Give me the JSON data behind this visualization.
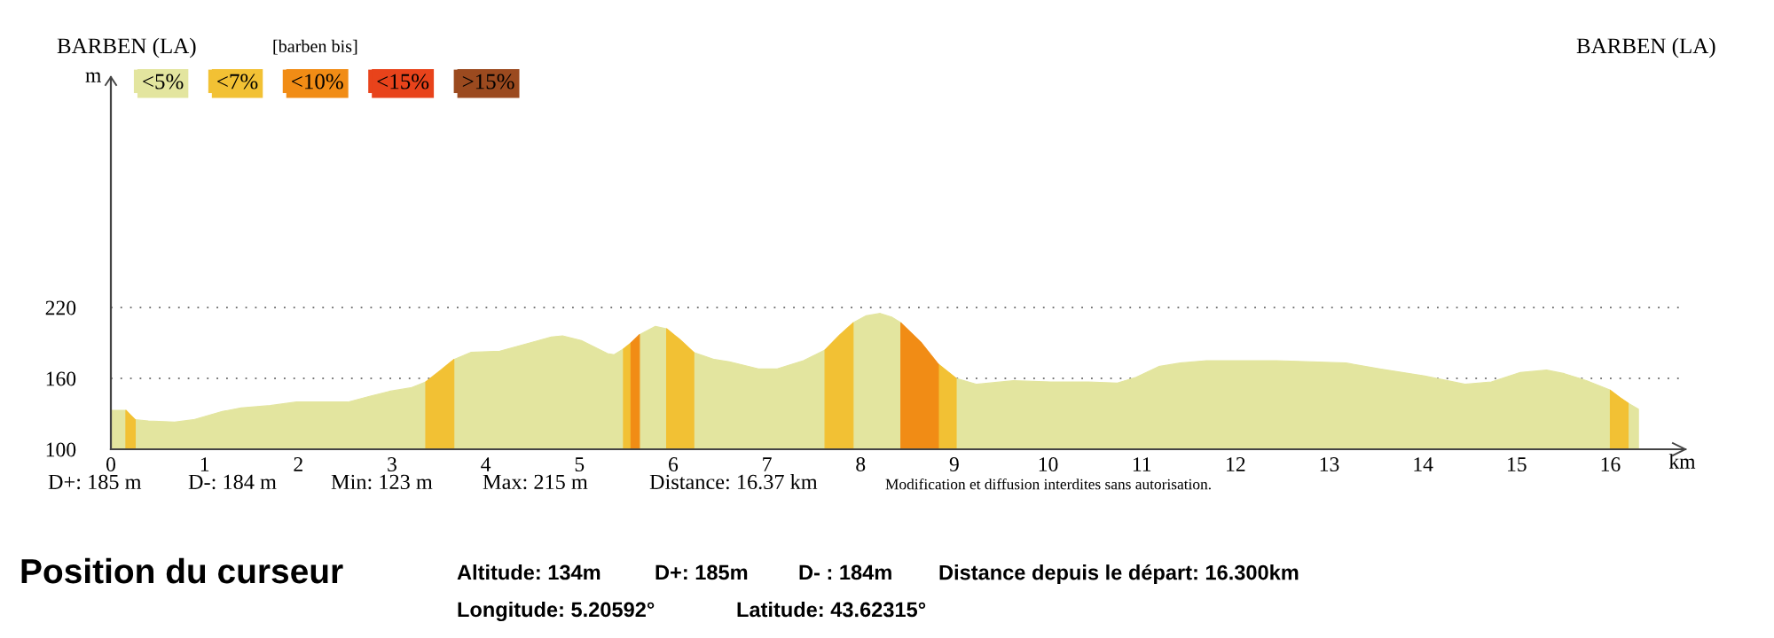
{
  "chart_data": {
    "type": "area",
    "title": "[barben bis]",
    "xlabel": "km",
    "ylabel": "m",
    "x": [
      0,
      0.16,
      0.21,
      0.26,
      0.4,
      0.68,
      0.88,
      1.19,
      1.39,
      1.7,
      1.98,
      2.53,
      2.77,
      2.97,
      3.2,
      3.36,
      3.52,
      3.66,
      3.84,
      4.15,
      4.47,
      4.7,
      4.82,
      5.02,
      5.3,
      5.37,
      5.47,
      5.55,
      5.64,
      5.81,
      5.93,
      6.07,
      6.22,
      6.44,
      6.6,
      6.91,
      7.11,
      7.39,
      7.62,
      7.78,
      7.92,
      8.06,
      8.21,
      8.33,
      8.43,
      8.65,
      8.83,
      9.02,
      9.24,
      9.63,
      10.03,
      10.43,
      10.74,
      10.94,
      11.18,
      11.41,
      11.69,
      12.44,
      13.18,
      13.54,
      14.02,
      14.45,
      14.73,
      15.04,
      15.32,
      15.51,
      15.75,
      16.0,
      16.1,
      16.19,
      16.3
    ],
    "series": [
      {
        "name": "<5%",
        "color": "#e3e59f",
        "values": [
          133,
          133,
          null,
          125,
          124,
          123,
          125,
          132,
          135,
          137,
          140,
          140,
          145,
          149,
          152,
          157,
          null,
          176,
          182,
          183,
          190,
          195,
          196,
          192,
          181,
          180,
          185,
          null,
          197,
          204,
          202,
          null,
          182,
          176,
          174,
          168,
          168,
          175,
          184,
          null,
          207,
          213,
          215,
          212,
          207,
          null,
          null,
          160,
          155,
          158,
          157,
          157,
          156,
          161,
          170,
          173,
          175,
          175,
          173,
          168,
          162,
          155,
          157,
          165,
          167,
          164,
          158,
          150,
          null,
          139,
          134
        ]
      },
      {
        "name": "<7%",
        "color": "#f2c134",
        "values": [
          null,
          133,
          129,
          125,
          null,
          null,
          null,
          null,
          null,
          null,
          null,
          null,
          null,
          null,
          null,
          157,
          167,
          176,
          null,
          null,
          null,
          null,
          null,
          null,
          null,
          null,
          185,
          190,
          null,
          null,
          202,
          193,
          182,
          null,
          null,
          null,
          null,
          null,
          184,
          197,
          207,
          null,
          null,
          null,
          null,
          null,
          172,
          160,
          null,
          null,
          null,
          null,
          null,
          null,
          null,
          null,
          null,
          null,
          null,
          null,
          null,
          null,
          null,
          null,
          null,
          null,
          null,
          150,
          144,
          139,
          null
        ]
      },
      {
        "name": "<10%",
        "color": "#f18c15",
        "values": [
          null,
          null,
          null,
          null,
          null,
          null,
          null,
          null,
          null,
          null,
          null,
          null,
          null,
          null,
          null,
          null,
          null,
          null,
          null,
          null,
          null,
          null,
          null,
          null,
          null,
          null,
          null,
          190,
          197,
          null,
          null,
          null,
          null,
          null,
          null,
          null,
          null,
          null,
          null,
          null,
          null,
          null,
          null,
          null,
          207,
          190,
          172,
          null,
          null,
          null,
          null,
          null,
          null,
          null,
          null,
          null,
          null,
          null,
          null,
          null,
          null,
          null,
          null,
          null,
          null,
          null,
          null,
          null,
          null,
          null,
          null
        ]
      },
      {
        "name": "<15%",
        "color": "#e8431b",
        "values": [
          null,
          null,
          null,
          null,
          null,
          null,
          null,
          null,
          null,
          null,
          null,
          null,
          null,
          null,
          null,
          null,
          null,
          null,
          null,
          null,
          null,
          null,
          null,
          null,
          null,
          null,
          null,
          null,
          null,
          null,
          null,
          null,
          null,
          null,
          null,
          null,
          null,
          null,
          null,
          null,
          null,
          null,
          null,
          null,
          null,
          null,
          null,
          null,
          null,
          null,
          null,
          null,
          null,
          null,
          null,
          null,
          null,
          null,
          null,
          null,
          null,
          null,
          null,
          null,
          null,
          null,
          null,
          null,
          null,
          null,
          null
        ]
      },
      {
        "name": ">15%",
        "color": "#9b4a1f",
        "values": [
          null,
          null,
          null,
          null,
          null,
          null,
          null,
          null,
          null,
          null,
          null,
          null,
          null,
          null,
          null,
          null,
          null,
          null,
          null,
          null,
          null,
          null,
          null,
          null,
          null,
          null,
          null,
          null,
          null,
          null,
          null,
          null,
          null,
          null,
          null,
          null,
          null,
          null,
          null,
          null,
          null,
          null,
          null,
          null,
          null,
          null,
          null,
          null,
          null,
          null,
          null,
          null,
          null,
          null,
          null,
          null,
          null,
          null,
          null,
          null,
          null,
          null,
          null,
          null,
          null,
          null,
          null,
          null,
          null,
          null,
          null
        ]
      }
    ],
    "xlim": [
      0,
      16.8
    ],
    "ylim": [
      100,
      415
    ],
    "xticks": [
      0,
      1,
      2,
      3,
      4,
      5,
      6,
      7,
      8,
      9,
      10,
      11,
      12,
      13,
      14,
      15,
      16
    ],
    "yticks": [
      100,
      160,
      220
    ],
    "grid": "y",
    "legend": "top left",
    "annotations": [
      "BARBEN (LA)",
      "BARBEN (LA)",
      "D+: 185 m",
      "D-: 184 m",
      "Min: 123 m",
      "Max: 215 m",
      "Distance: 16.37 km",
      "Modification et diffusion interdites sans autorisation.",
      "Position du curseur",
      "Altitude: 134m",
      "D+: 185m",
      "D- : 184m",
      "Distance depuis le départ: 16.300km",
      "Longitude: 5.20592°",
      "Latitude: 43.62315°"
    ]
  }
}
